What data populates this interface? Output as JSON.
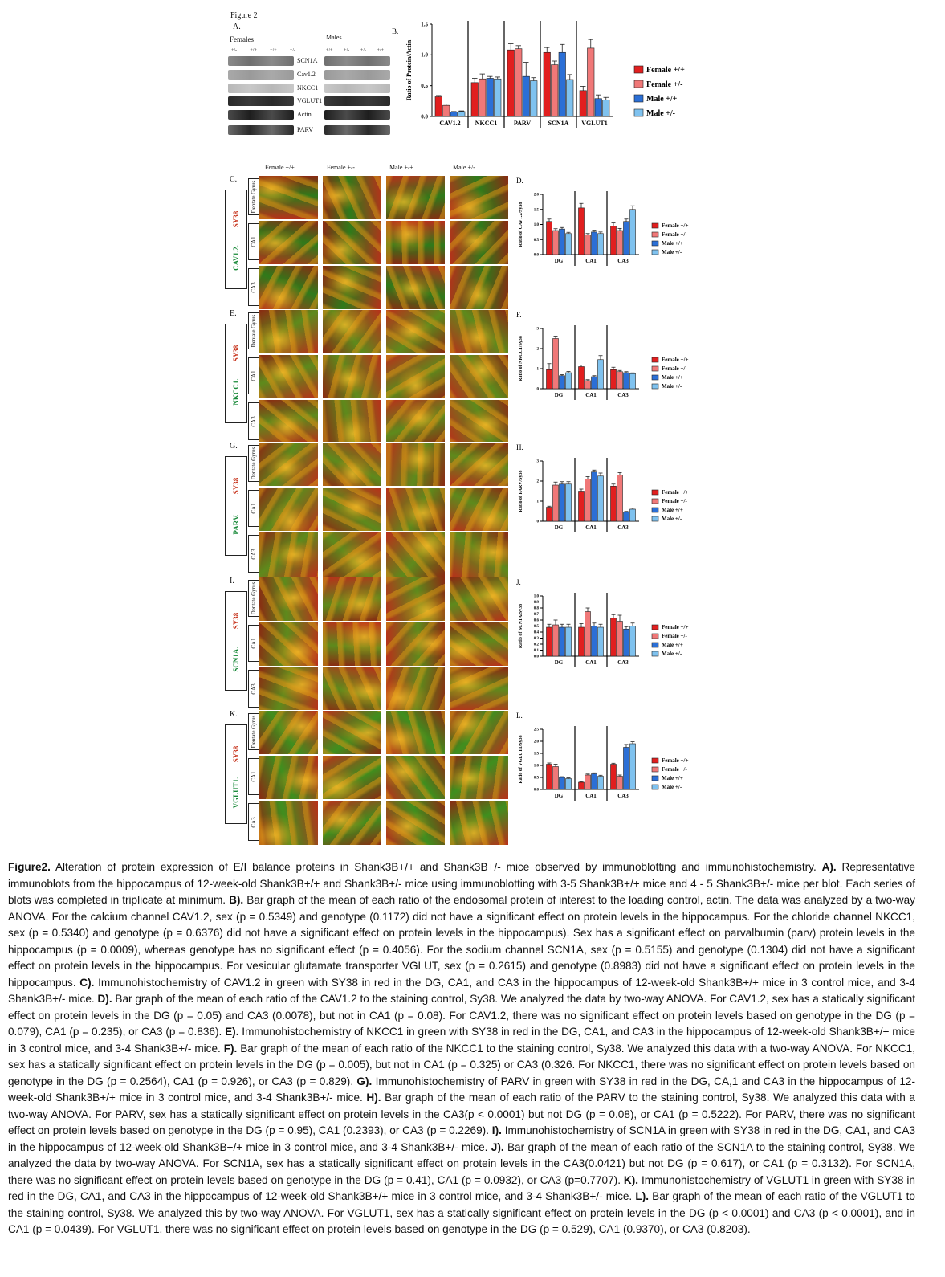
{
  "figure": {
    "label": "Figure 2",
    "panelA": {
      "letter": "A.",
      "females_label": "Females",
      "males_label": "Males",
      "female_genotypes": [
        "+/-",
        "+/+",
        "+/+",
        "+/-"
      ],
      "male_genotypes": [
        "+/+",
        "+/-",
        "+/-",
        "+/+"
      ],
      "proteins": [
        "SCN1A",
        "Cav1.2",
        "NKCC1",
        "VGLUT1",
        "Actin",
        "PARV"
      ]
    },
    "columns": [
      "Female +/+",
      "Female +/-",
      "Male +/+",
      "Male +/-"
    ],
    "regions": [
      "Dentate Gyrus",
      "CA1",
      "CA3"
    ],
    "stain_red": "SY38",
    "rows": [
      {
        "letter": "C.",
        "green": "CAV1.2"
      },
      {
        "letter": "E.",
        "green": "NKCC1"
      },
      {
        "letter": "G.",
        "green": "PARV"
      },
      {
        "letter": "I.",
        "green": "SCN1A"
      },
      {
        "letter": "K.",
        "green": "VGLUT1"
      }
    ],
    "colors": {
      "female_wt": "#e11f1f",
      "female_het": "#f07878",
      "male_wt": "#2b6fd6",
      "male_het": "#7fc2ef",
      "stain_green": "#1a8a3a",
      "stain_red": "#c8361f"
    }
  },
  "chart_data": [
    {
      "panel": "B.",
      "type": "bar",
      "ylabel": "Ratio of Protein/Actin",
      "ylim": [
        0,
        1.5
      ],
      "yticks": [
        "0.0",
        "0.5",
        "1.0",
        "1.5"
      ],
      "categories": [
        "CAV1.2",
        "NKCC1",
        "PARV",
        "SCN1A",
        "VGLUT1"
      ],
      "series": [
        {
          "name": "Female +/+",
          "values": [
            0.32,
            0.55,
            1.08,
            1.04,
            0.42
          ],
          "err": [
            0.02,
            0.07,
            0.1,
            0.08,
            0.07
          ]
        },
        {
          "name": "Female +/-",
          "values": [
            0.18,
            0.61,
            1.1,
            0.84,
            1.11
          ],
          "err": [
            0.02,
            0.08,
            0.05,
            0.06,
            0.14
          ]
        },
        {
          "name": "Male +/+",
          "values": [
            0.07,
            0.62,
            0.65,
            1.04,
            0.29
          ],
          "err": [
            0.01,
            0.03,
            0.23,
            0.13,
            0.06
          ]
        },
        {
          "name": "Male +/-",
          "values": [
            0.08,
            0.61,
            0.58,
            0.6,
            0.27
          ],
          "err": [
            0.01,
            0.03,
            0.05,
            0.08,
            0.04
          ]
        }
      ],
      "legend": "right"
    },
    {
      "panel": "D.",
      "type": "bar",
      "ylabel": "Ratio of CAV1.2/Sy38",
      "ylim": [
        0,
        2.0
      ],
      "yticks": [
        "0.0",
        "0.5",
        "1.0",
        "1.5",
        "2.0"
      ],
      "categories": [
        "DG",
        "CA1",
        "CA3"
      ],
      "series": [
        {
          "name": "Female +/+",
          "values": [
            1.1,
            1.55,
            0.95
          ],
          "err": [
            0.08,
            0.15,
            0.1
          ]
        },
        {
          "name": "Female +/-",
          "values": [
            0.8,
            0.65,
            0.8
          ],
          "err": [
            0.06,
            0.05,
            0.07
          ]
        },
        {
          "name": "Male +/+",
          "values": [
            0.85,
            0.75,
            1.1
          ],
          "err": [
            0.05,
            0.06,
            0.08
          ]
        },
        {
          "name": "Male +/-",
          "values": [
            0.7,
            0.7,
            1.5
          ],
          "err": [
            0.04,
            0.05,
            0.12
          ]
        }
      ],
      "legend": "right"
    },
    {
      "panel": "F.",
      "type": "bar",
      "ylabel": "Ratio of NKCC1/Sy38",
      "ylim": [
        0,
        3
      ],
      "yticks": [
        "0",
        "1",
        "2",
        "3"
      ],
      "categories": [
        "DG",
        "CA1",
        "CA3"
      ],
      "series": [
        {
          "name": "Female +/+",
          "values": [
            0.95,
            1.1,
            0.95
          ],
          "err": [
            0.3,
            0.08,
            0.12
          ]
        },
        {
          "name": "Female +/-",
          "values": [
            2.5,
            0.4,
            0.85
          ],
          "err": [
            0.12,
            0.05,
            0.06
          ]
        },
        {
          "name": "Male +/+",
          "values": [
            0.65,
            0.6,
            0.8
          ],
          "err": [
            0.05,
            0.05,
            0.05
          ]
        },
        {
          "name": "Male +/-",
          "values": [
            0.8,
            1.45,
            0.75
          ],
          "err": [
            0.06,
            0.2,
            0.04
          ]
        }
      ],
      "legend": "right"
    },
    {
      "panel": "H.",
      "type": "bar",
      "ylabel": "Ratio of PARV/Sy38",
      "ylim": [
        0,
        3
      ],
      "yticks": [
        "0",
        "1",
        "2",
        "3"
      ],
      "categories": [
        "DG",
        "CA1",
        "CA3"
      ],
      "series": [
        {
          "name": "Female +/+",
          "values": [
            0.7,
            1.5,
            1.75
          ],
          "err": [
            0.05,
            0.1,
            0.1
          ]
        },
        {
          "name": "Female +/-",
          "values": [
            1.8,
            2.1,
            2.3
          ],
          "err": [
            0.15,
            0.12,
            0.12
          ]
        },
        {
          "name": "Male +/+",
          "values": [
            1.85,
            2.45,
            0.45
          ],
          "err": [
            0.12,
            0.1,
            0.04
          ]
        },
        {
          "name": "Male +/-",
          "values": [
            1.85,
            2.25,
            0.6
          ],
          "err": [
            0.12,
            0.15,
            0.05
          ]
        }
      ],
      "legend": "right"
    },
    {
      "panel": "J.",
      "type": "bar",
      "ylabel": "Ratio of SCN1A/Sy38",
      "ylim": [
        0,
        1.0
      ],
      "yticks": [
        "0.0",
        "0.1",
        "0.2",
        "0.3",
        "0.4",
        "0.5",
        "0.6",
        "0.7",
        "0.8",
        "0.9",
        "1.0"
      ],
      "categories": [
        "DG",
        "CA1",
        "CA3"
      ],
      "series": [
        {
          "name": "Female +/+",
          "values": [
            0.48,
            0.48,
            0.63
          ],
          "err": [
            0.05,
            0.06,
            0.06
          ]
        },
        {
          "name": "Female +/-",
          "values": [
            0.52,
            0.74,
            0.58
          ],
          "err": [
            0.08,
            0.06,
            0.1
          ]
        },
        {
          "name": "Male +/+",
          "values": [
            0.48,
            0.5,
            0.45
          ],
          "err": [
            0.05,
            0.05,
            0.04
          ]
        },
        {
          "name": "Male +/-",
          "values": [
            0.48,
            0.48,
            0.5
          ],
          "err": [
            0.05,
            0.05,
            0.05
          ]
        }
      ],
      "legend": "right"
    },
    {
      "panel": "L.",
      "type": "bar",
      "ylabel": "Ratio of VGLUT1/Sy38",
      "ylim": [
        0,
        2.5
      ],
      "yticks": [
        "0.0",
        "0.5",
        "1.0",
        "1.5",
        "2.0",
        "2.5"
      ],
      "categories": [
        "DG",
        "CA1",
        "CA3"
      ],
      "series": [
        {
          "name": "Female +/+",
          "values": [
            1.05,
            0.3,
            1.05
          ],
          "err": [
            0.05,
            0.03,
            0.04
          ]
        },
        {
          "name": "Female +/-",
          "values": [
            0.95,
            0.6,
            0.55
          ],
          "err": [
            0.1,
            0.04,
            0.05
          ]
        },
        {
          "name": "Male +/+",
          "values": [
            0.5,
            0.65,
            1.75
          ],
          "err": [
            0.03,
            0.04,
            0.12
          ]
        },
        {
          "name": "Male +/-",
          "values": [
            0.45,
            0.55,
            1.9
          ],
          "err": [
            0.03,
            0.04,
            0.08
          ]
        }
      ],
      "legend": "right"
    }
  ],
  "caption": [
    {
      "bold": "Figure2.",
      "text": " Alteration of protein expression of E/I balance proteins in Shank3B+/+ and Shank3B+/- mice observed by immunoblotting and immunohistochemistry. "
    },
    {
      "bold": "A).",
      "text": " Representative immunoblots from the hippocampus of 12-week-old Shank3B+/+ and Shank3B+/- mice using immunoblotting with 3-5 Shank3B+/+ mice and 4 - 5 Shank3B+/- mice per blot. Each series of blots was completed in triplicate at minimum. "
    },
    {
      "bold": "B).",
      "text": " Bar graph of the mean of each ratio of the endosomal protein of interest to the loading control, actin. The data was analyzed by a two-way ANOVA. For the calcium channel CAV1.2, sex (p = 0.5349) and genotype (0.1172) did not have a significant effect on protein levels in the hippocampus. For the chloride channel NKCC1, sex (p = 0.5340) and genotype (p = 0.6376) did not have a significant effect on protein levels in the hippocampus). Sex has a significant effect on parvalbumin (parv) protein levels in the hippocampus (p = 0.0009), whereas genotype has no significant effect (p = 0.4056). For the sodium channel SCN1A, sex (p = 0.5155) and genotype (0.1304) did not have a significant effect on protein levels in the hippocampus. For vesicular glutamate transporter VGLUT, sex (p = 0.2615) and genotype (0.8983) did not have a significant effect on protein levels in the hippocampus. "
    },
    {
      "bold": "C).",
      "text": " Immunohistochemistry of CAV1.2 in green with SY38 in red in the DG, CA1, and CA3 in the hippocampus of 12-week-old Shank3B+/+ mice in 3 control mice, and 3-4 Shank3B+/- mice. "
    },
    {
      "bold": "D).",
      "text": " Bar graph of the mean of each ratio of the CAV1.2 to the staining control, Sy38. We analyzed the data by two-way ANOVA. For CAV1.2, sex has a statically significant effect on protein levels in the DG (p = 0.05) and CA3 (0.0078), but not in CA1 (p = 0.08). For CAV1.2, there was no significant effect on protein levels based on genotype in the DG (p = 0.079), CA1 (p = 0.235), or CA3 (p = 0.836). "
    },
    {
      "bold": "E).",
      "text": " Immunohistochemistry of NKCC1 in green with SY38 in red in the DG, CA1, and CA3 in the hippocampus of 12-week-old Shank3B+/+ mice in 3 control mice, and 3-4 Shank3B+/- mice. "
    },
    {
      "bold": "F).",
      "text": " Bar graph of the mean of each ratio of the NKCC1 to the staining control, Sy38. We analyzed this data with a two-way ANOVA. For NKCC1, sex has a statically significant effect on protein levels in the DG (p = 0.005), but not in CA1 (p = 0.325) or CA3 (0.326. For NKCC1, there was no significant effect on protein levels based on genotype in the DG (p = 0.2564), CA1 (p = 0.926), or CA3 (p = 0.829). "
    },
    {
      "bold": "G).",
      "text": " Immunohistochemistry of PARV in green with SY38 in red in the DG, CA,1 and CA3 in the hippocampus of 12-week-old Shank3B+/+ mice in 3 control mice, and 3-4 Shank3B+/- mice. "
    },
    {
      "bold": "H).",
      "text": " Bar graph of the mean of each ratio of the PARV to the staining control, Sy38. We analyzed this data with a two-way ANOVA. For PARV, sex has a statically significant effect on protein levels in the CA3(p < 0.0001) but not DG (p = 0.08), or CA1 (p = 0.5222). For PARV, there was no significant effect on protein levels based on genotype in the DG (p = 0.95), CA1 (0.2393), or CA3 (p = 0.2269). "
    },
    {
      "bold": "I).",
      "text": " Immunohistochemistry of SCN1A in green with SY38 in red in the DG, CA1, and CA3 in the hippocampus of 12-week-old Shank3B+/+ mice in 3 control mice, and 3-4 Shank3B+/- mice. "
    },
    {
      "bold": "J).",
      "text": " Bar graph of the mean of each ratio of the SCN1A to the staining control, Sy38. We analyzed the data by two-way ANOVA. For SCN1A, sex has a statically significant effect on protein levels in the CA3(0.0421) but not DG (p = 0.617), or CA1 (p = 0.3132). For SCN1A, there was no significant effect on protein levels based on genotype in the DG (p = 0.41), CA1 (p = 0.0932), or CA3 (p=0.7707). "
    },
    {
      "bold": "K).",
      "text": " Immunohistochemistry of VGLUT1 in green with SY38 in red in the DG, CA1, and CA3 in the hippocampus of 12-week-old Shank3B+/+ mice in 3 control mice, and 3-4 Shank3B+/- mice. "
    },
    {
      "bold": "L).",
      "text": " Bar graph of the mean of each ratio of the VGLUT1 to the staining control, Sy38. We analyzed this by two-way ANOVA. For VGLUT1, sex has a statically significant effect on protein levels in the DG (p < 0.0001) and CA3 (p < 0.0001), and in CA1 (p = 0.0439). For VGLUT1, there was no significant effect on protein levels based on genotype in the DG (p = 0.529), CA1 (0.9370), or CA3 (0.8203)."
    }
  ]
}
